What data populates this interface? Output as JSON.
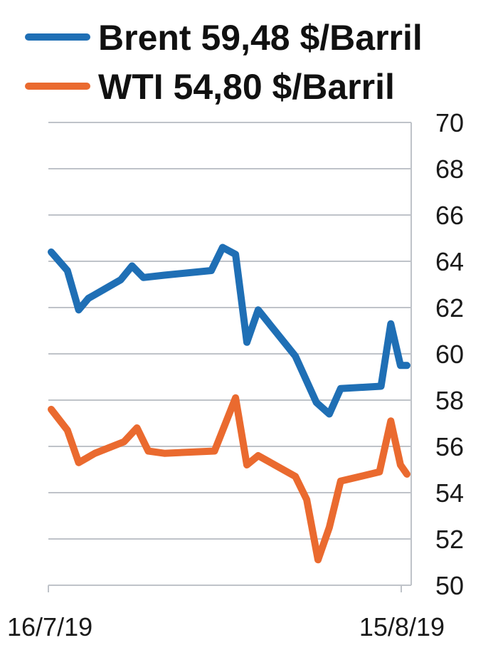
{
  "chart_data": {
    "type": "line",
    "title": "",
    "xlabel": "",
    "ylabel": "",
    "ylim": [
      50,
      70
    ],
    "y_ticks": [
      70,
      68,
      66,
      64,
      62,
      60,
      58,
      56,
      54,
      52,
      50
    ],
    "x_tick_labels": [
      "16/7/19",
      "15/8/19"
    ],
    "x_domain": [
      0,
      22
    ],
    "grid": true,
    "legend_position": "top-left",
    "y_axis_side": "right",
    "series": [
      {
        "name": "Brent 59,48 $/Barril",
        "color": "#1f6fb5",
        "points": [
          [
            0,
            64.4
          ],
          [
            1,
            63.6
          ],
          [
            1.7,
            61.9
          ],
          [
            2.3,
            62.4
          ],
          [
            4.3,
            63.2
          ],
          [
            5.0,
            63.8
          ],
          [
            5.7,
            63.3
          ],
          [
            7.0,
            63.4
          ],
          [
            9.9,
            63.6
          ],
          [
            10.6,
            64.6
          ],
          [
            11.4,
            64.3
          ],
          [
            12.1,
            60.5
          ],
          [
            12.8,
            61.9
          ],
          [
            15.1,
            59.9
          ],
          [
            16.4,
            57.9
          ],
          [
            17.2,
            57.4
          ],
          [
            17.9,
            58.5
          ],
          [
            20.4,
            58.6
          ],
          [
            21.0,
            61.3
          ],
          [
            21.6,
            59.5
          ],
          [
            22.0,
            59.5
          ]
        ]
      },
      {
        "name": "WTI 54,80 $/Barril",
        "color": "#ea6a2f",
        "points": [
          [
            0,
            57.6
          ],
          [
            1,
            56.7
          ],
          [
            1.7,
            55.3
          ],
          [
            2.7,
            55.7
          ],
          [
            4.5,
            56.2
          ],
          [
            5.3,
            56.8
          ],
          [
            6.0,
            55.8
          ],
          [
            7.0,
            55.7
          ],
          [
            10.1,
            55.8
          ],
          [
            11.4,
            58.1
          ],
          [
            12.1,
            55.2
          ],
          [
            12.8,
            55.6
          ],
          [
            15.1,
            54.7
          ],
          [
            15.8,
            53.7
          ],
          [
            16.5,
            51.1
          ],
          [
            17.2,
            52.5
          ],
          [
            17.9,
            54.5
          ],
          [
            20.3,
            54.9
          ],
          [
            21.0,
            57.1
          ],
          [
            21.6,
            55.2
          ],
          [
            22.0,
            54.8
          ]
        ]
      }
    ]
  }
}
